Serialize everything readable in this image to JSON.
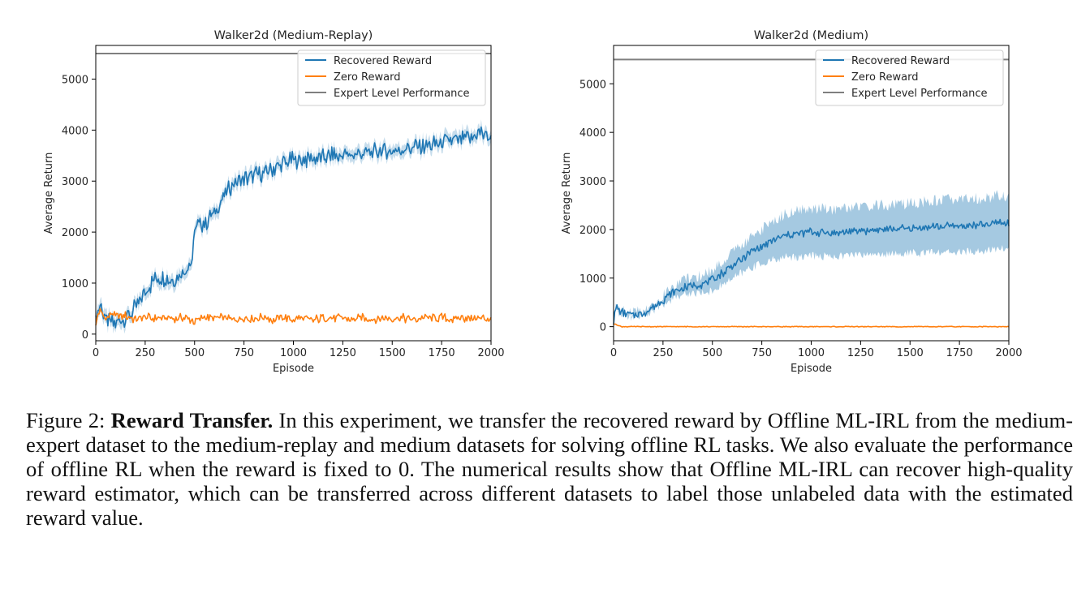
{
  "colors": {
    "recovered": "#1f77b4",
    "zero": "#ff7f0e",
    "expert": "#7f7f7f",
    "band": "#1f77b4"
  },
  "chart_data": [
    {
      "type": "line",
      "title": "Walker2d (Medium-Replay)",
      "xlabel": "Episode",
      "ylabel": "Average Return",
      "xlim": [
        0,
        2000
      ],
      "ylim": [
        -130,
        5660
      ],
      "xticks": [
        0,
        250,
        500,
        750,
        1000,
        1250,
        1500,
        1750,
        2000
      ],
      "xtick_labels": [
        "0",
        "250",
        "500",
        "750",
        "1000",
        "1250",
        "1500",
        "1750",
        "2000"
      ],
      "yticks": [
        0,
        1000,
        2000,
        3000,
        4000,
        5000
      ],
      "ytick_labels": [
        "0",
        "1000",
        "2000",
        "3000",
        "4000",
        "5000"
      ],
      "legend_position": "top-right",
      "series": [
        {
          "name": "Recovered Reward",
          "x": [
            0,
            25,
            50,
            75,
            100,
            150,
            200,
            250,
            300,
            350,
            400,
            450,
            490,
            500,
            550,
            600,
            650,
            700,
            750,
            800,
            850,
            900,
            950,
            1000,
            1100,
            1200,
            1300,
            1400,
            1500,
            1600,
            1700,
            1800,
            1900,
            1950,
            2000
          ],
          "values": [
            300,
            600,
            250,
            200,
            230,
            330,
            500,
            820,
            1080,
            1120,
            1050,
            1280,
            1400,
            2080,
            2180,
            2350,
            2750,
            2950,
            3050,
            3100,
            3150,
            3250,
            3350,
            3400,
            3450,
            3500,
            3520,
            3560,
            3600,
            3650,
            3700,
            3800,
            3850,
            3950,
            3800
          ],
          "band": 150
        },
        {
          "name": "Zero Reward",
          "x": [
            0,
            10,
            20,
            40,
            60,
            80,
            100,
            150,
            200,
            250,
            300,
            350,
            400,
            450,
            500,
            550,
            600,
            650,
            700,
            750,
            800,
            850,
            900,
            950,
            1000,
            1050,
            1100,
            1150,
            1200,
            1250,
            1300,
            1350,
            1400,
            1450,
            1500,
            1550,
            1600,
            1650,
            1700,
            1750,
            1800,
            1850,
            1900,
            1950,
            2000
          ],
          "values": [
            150,
            420,
            460,
            360,
            300,
            420,
            340,
            360,
            290,
            330,
            310,
            320,
            300,
            330,
            250,
            340,
            300,
            330,
            280,
            320,
            300,
            330,
            280,
            340,
            290,
            320,
            270,
            330,
            300,
            320,
            280,
            320,
            290,
            330,
            300,
            320,
            280,
            330,
            300,
            330,
            290,
            320,
            300,
            320,
            290
          ],
          "band": 0
        },
        {
          "name": "Expert Level Performance",
          "x": [
            0,
            2000
          ],
          "values": [
            5500,
            5500
          ],
          "band": 0
        }
      ]
    },
    {
      "type": "line",
      "title": "Walker2d (Medium)",
      "xlabel": "Episode",
      "ylabel": "Average Return",
      "xlim": [
        0,
        2000
      ],
      "ylim": [
        -290,
        5790
      ],
      "xticks": [
        0,
        250,
        500,
        750,
        1000,
        1250,
        1500,
        1750,
        2000
      ],
      "xtick_labels": [
        "0",
        "250",
        "500",
        "750",
        "1000",
        "1250",
        "1500",
        "1750",
        "2000"
      ],
      "yticks": [
        0,
        1000,
        2000,
        3000,
        4000,
        5000
      ],
      "ytick_labels": [
        "0",
        "1000",
        "2000",
        "3000",
        "4000",
        "5000"
      ],
      "legend_position": "top-right",
      "series": [
        {
          "name": "Recovered Reward",
          "x": [
            0,
            15,
            30,
            60,
            100,
            150,
            200,
            250,
            300,
            350,
            400,
            450,
            500,
            550,
            600,
            650,
            700,
            750,
            800,
            850,
            900,
            950,
            1000,
            1100,
            1200,
            1300,
            1400,
            1500,
            1600,
            1700,
            1800,
            1900,
            1950,
            2000
          ],
          "values": [
            120,
            420,
            320,
            250,
            240,
            280,
            400,
            550,
            700,
            800,
            850,
            880,
            950,
            1100,
            1250,
            1400,
            1550,
            1650,
            1750,
            1850,
            1900,
            1920,
            1950,
            1930,
            1960,
            1990,
            2000,
            2020,
            2050,
            2070,
            2080,
            2100,
            2150,
            2100
          ],
          "band_lower": [
            100,
            380,
            280,
            210,
            200,
            220,
            320,
            450,
            580,
            660,
            690,
            700,
            740,
            860,
            980,
            1110,
            1230,
            1300,
            1360,
            1420,
            1440,
            1440,
            1460,
            1450,
            1470,
            1490,
            1500,
            1510,
            1520,
            1530,
            1540,
            1560,
            1620,
            1600
          ],
          "band_upper": [
            140,
            460,
            360,
            290,
            280,
            340,
            480,
            650,
            820,
            940,
            1010,
            1060,
            1160,
            1340,
            1520,
            1690,
            1870,
            2000,
            2140,
            2280,
            2360,
            2400,
            2440,
            2420,
            2450,
            2490,
            2510,
            2540,
            2580,
            2610,
            2630,
            2650,
            2720,
            2650
          ]
        },
        {
          "name": "Zero Reward",
          "x": [
            0,
            10,
            20,
            40,
            100,
            300,
            600,
            1000,
            1500,
            2000
          ],
          "values": [
            50,
            60,
            30,
            0,
            0,
            0,
            0,
            0,
            0,
            0
          ],
          "band": 0
        },
        {
          "name": "Expert Level Performance",
          "x": [
            0,
            2000
          ],
          "values": [
            5500,
            5500
          ],
          "band": 0
        }
      ]
    }
  ],
  "caption": {
    "prefix": "Figure 2: ",
    "bold": "Reward Transfer.",
    "text": " In this experiment, we transfer the recovered reward by Offline ML-IRL from the medium-expert dataset to the medium-replay and medium datasets for solving offline RL tasks. We also evaluate the performance of offline RL when the reward is fixed to 0. The numerical results show that Offline ML-IRL can recover high-quality reward estimator, which can be transferred across different datasets to label those unlabeled data with the estimated reward value."
  }
}
